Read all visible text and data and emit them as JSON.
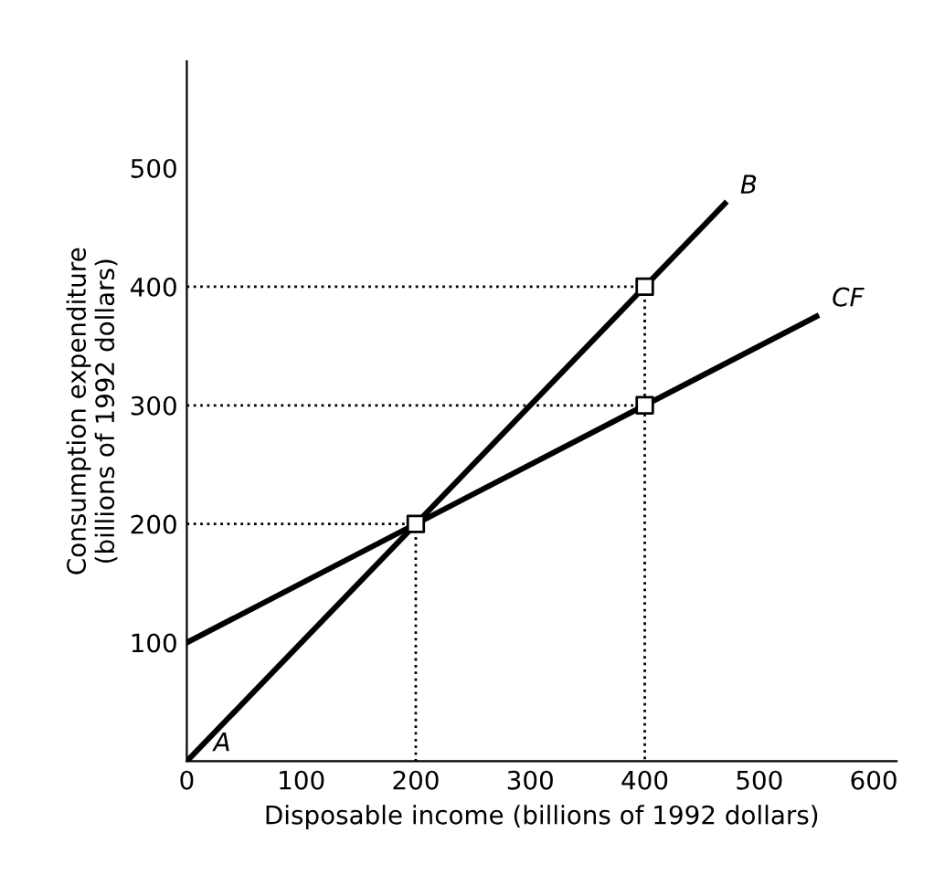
{
  "chart_data": {
    "type": "line",
    "xlabel": "Disposable income (billions of 1992 dollars)",
    "ylabel": "Consumption expenditure\n(billions of 1992 dollars)",
    "xlim": [
      0,
      620
    ],
    "ylim": [
      0,
      590
    ],
    "xticks": [
      0,
      100,
      200,
      300,
      400,
      500,
      600
    ],
    "yticks": [
      100,
      200,
      300,
      400,
      500
    ],
    "grid": false,
    "legend": false,
    "series": [
      {
        "x": [
          0,
          200,
          200
        ],
        "values": [
          200,
          200,
          0
        ],
        "color": "#000000",
        "line_style": "dotted",
        "marker": "none"
      },
      {
        "x": [
          0,
          400,
          400
        ],
        "values": [
          400,
          400,
          0
        ],
        "color": "#000000",
        "line_style": "dotted",
        "marker": "none"
      },
      {
        "x": [
          0,
          400
        ],
        "values": [
          300,
          300
        ],
        "color": "#000000",
        "line_style": "dotted",
        "marker": "none"
      },
      {
        "x": [
          0,
          470
        ],
        "values": [
          0,
          470
        ],
        "color": "#000000",
        "line_style": "solid",
        "marker": "none"
      },
      {
        "x": [
          0,
          550
        ],
        "values": [
          100,
          375
        ],
        "color": "#000000",
        "line_style": "solid",
        "marker": "none"
      },
      {
        "type": "scatter",
        "x": [
          200,
          400,
          400
        ],
        "values": [
          200,
          400,
          300
        ],
        "color": "#000000",
        "marker": "square"
      }
    ],
    "annotations": [
      {
        "text": "A",
        "x": 10,
        "y": 0
      },
      {
        "text": "B",
        "x": 470,
        "y": 470
      },
      {
        "text": "CF",
        "x": 550,
        "y": 375
      }
    ]
  }
}
